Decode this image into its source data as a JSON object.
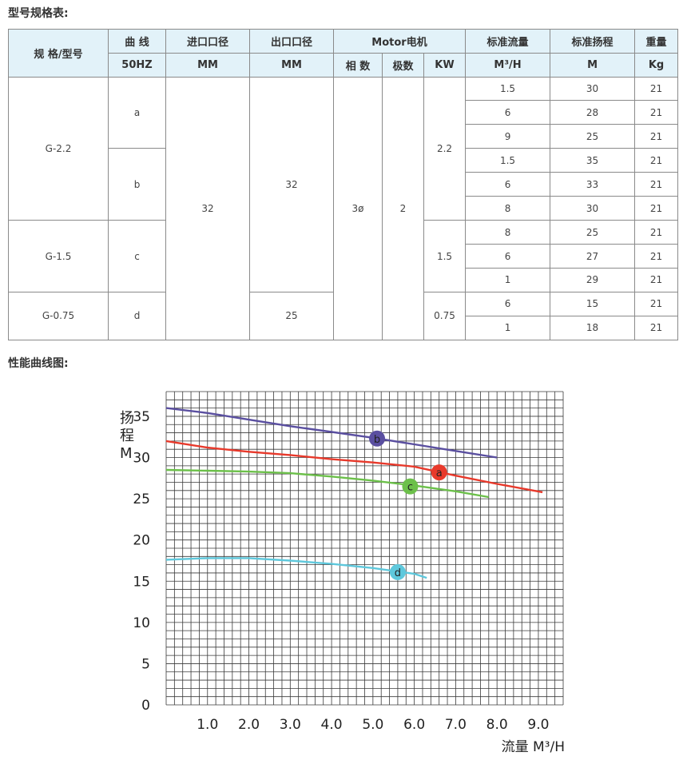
{
  "titles": {
    "spec_table": "型号规格表:",
    "curve": "性能曲线图:"
  },
  "table": {
    "header1": {
      "model": "规 格/型号",
      "curve": "曲 线",
      "inlet": "进口口径",
      "outlet": "出口口径",
      "motor": "Motor电机",
      "flow": "标准流量",
      "head": "标准扬程",
      "weight": "重量"
    },
    "header2": {
      "curve": "50HZ",
      "inlet": "MM",
      "outlet": "MM",
      "phase": "相 数",
      "poles": "极数",
      "kw": "KW",
      "flow": "M³/H",
      "head": "M",
      "weight": "Kg"
    },
    "models": [
      "G-2.2",
      "G-1.5",
      "G-0.75"
    ],
    "curves": [
      "a",
      "b",
      "c",
      "d"
    ],
    "inlet": "32",
    "outlet_a": "32",
    "outlet_b": "25",
    "phase": "3ø",
    "poles": "2",
    "kw": [
      "2.2",
      "1.5",
      "0.75"
    ],
    "rows": [
      {
        "flow": "1.5",
        "head": "30",
        "weight": "21"
      },
      {
        "flow": "6",
        "head": "28",
        "weight": "21"
      },
      {
        "flow": "9",
        "head": "25",
        "weight": "21"
      },
      {
        "flow": "1.5",
        "head": "35",
        "weight": "21"
      },
      {
        "flow": "6",
        "head": "33",
        "weight": "21"
      },
      {
        "flow": "8",
        "head": "30",
        "weight": "21"
      },
      {
        "flow": "8",
        "head": "25",
        "weight": "21"
      },
      {
        "flow": "6",
        "head": "27",
        "weight": "21"
      },
      {
        "flow": "1",
        "head": "29",
        "weight": "21"
      },
      {
        "flow": "6",
        "head": "15",
        "weight": "21"
      },
      {
        "flow": "1",
        "head": "18",
        "weight": "21"
      }
    ]
  },
  "colors": {
    "header_bg": "#e2f2f9",
    "grid": "#3a3a3a",
    "a": "#e8392b",
    "b": "#5a4fa0",
    "c": "#6cc04a",
    "d": "#5ec8dc"
  },
  "chart_data": {
    "type": "line",
    "ylabel": "扬程 M",
    "xlabel": "流量 M³/H",
    "xlim": [
      0,
      9.6
    ],
    "ylim": [
      0,
      38
    ],
    "xticks": [
      "1.0",
      "2.0",
      "3.0",
      "4.0",
      "5.0",
      "6.0",
      "7.0",
      "8.0",
      "9.0"
    ],
    "xtick_values": [
      1,
      2,
      3,
      4,
      5,
      6,
      7,
      8,
      9
    ],
    "yticks": [
      "0",
      "5",
      "10",
      "15",
      "20",
      "25",
      "30",
      "35"
    ],
    "ytick_values": [
      0,
      5,
      10,
      15,
      20,
      25,
      30,
      35
    ],
    "series": [
      {
        "name": "b",
        "color": "#5a4fa0",
        "label_at": [
          5.1,
          32.3
        ],
        "points": [
          [
            0,
            36.0
          ],
          [
            1,
            35.4
          ],
          [
            2,
            34.6
          ],
          [
            3,
            33.8
          ],
          [
            4,
            33.1
          ],
          [
            5,
            32.4
          ],
          [
            6,
            31.6
          ],
          [
            7,
            30.8
          ],
          [
            8,
            30.0
          ]
        ]
      },
      {
        "name": "a",
        "color": "#e8392b",
        "label_at": [
          6.6,
          28.2
        ],
        "points": [
          [
            0,
            32.0
          ],
          [
            1,
            31.2
          ],
          [
            2,
            30.7
          ],
          [
            3,
            30.3
          ],
          [
            4,
            29.8
          ],
          [
            5,
            29.4
          ],
          [
            6,
            28.9
          ],
          [
            7,
            27.8
          ],
          [
            8,
            26.8
          ],
          [
            9.1,
            25.8
          ]
        ]
      },
      {
        "name": "c",
        "color": "#6cc04a",
        "label_at": [
          5.9,
          26.5
        ],
        "points": [
          [
            0,
            28.5
          ],
          [
            1,
            28.4
          ],
          [
            2,
            28.3
          ],
          [
            3,
            28.1
          ],
          [
            4,
            27.7
          ],
          [
            5,
            27.2
          ],
          [
            6,
            26.6
          ],
          [
            7,
            25.9
          ],
          [
            7.8,
            25.2
          ]
        ]
      },
      {
        "name": "d",
        "color": "#5ec8dc",
        "label_at": [
          5.6,
          16.1
        ],
        "points": [
          [
            0,
            17.6
          ],
          [
            1,
            17.8
          ],
          [
            2,
            17.8
          ],
          [
            3,
            17.5
          ],
          [
            4,
            17.1
          ],
          [
            5,
            16.6
          ],
          [
            6,
            15.9
          ],
          [
            6.3,
            15.4
          ]
        ]
      }
    ]
  }
}
